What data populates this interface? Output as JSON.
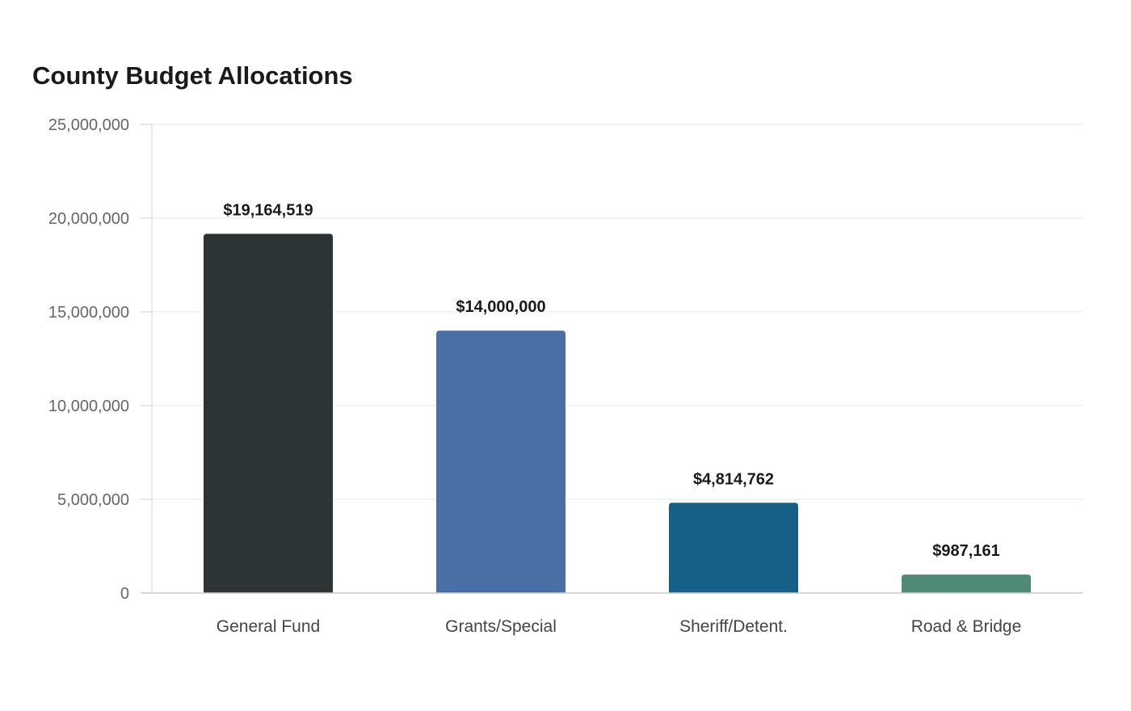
{
  "chart_data": {
    "type": "bar",
    "title": "County Budget Allocations",
    "xlabel": "",
    "ylabel": "",
    "categories": [
      "General Fund",
      "Grants/Special",
      "Sheriff/Detent.",
      "Road & Bridge"
    ],
    "values": [
      19164519,
      14000000,
      4814762,
      987161
    ],
    "value_labels": [
      "$19,164,519",
      "$14,000,000",
      "$4,814,762",
      "$987,161"
    ],
    "colors": [
      "#2d3436",
      "#4a6fa5",
      "#166088",
      "#4f8a78"
    ],
    "ylim": [
      0,
      25000000
    ],
    "yticks": [
      0,
      5000000,
      10000000,
      15000000,
      20000000,
      25000000
    ],
    "ytick_labels": [
      "0",
      "5,000,000",
      "10,000,000",
      "15,000,000",
      "20,000,000",
      "25,000,000"
    ],
    "grid": true,
    "legend": "none"
  }
}
